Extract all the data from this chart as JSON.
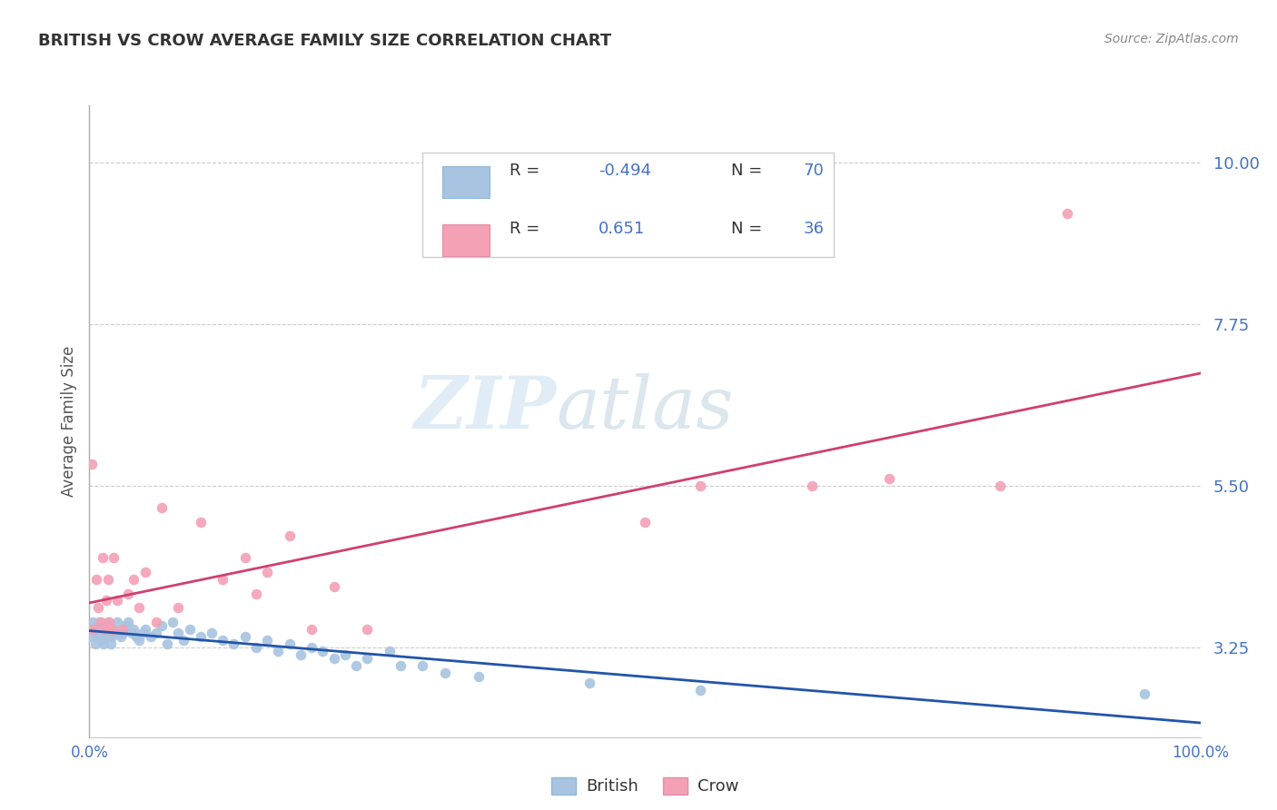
{
  "title": "BRITISH VS CROW AVERAGE FAMILY SIZE CORRELATION CHART",
  "source": "Source: ZipAtlas.com",
  "ylabel": "Average Family Size",
  "xlim": [
    0,
    1
  ],
  "ylim": [
    2.0,
    10.8
  ],
  "yticks": [
    3.25,
    5.5,
    7.75,
    10.0
  ],
  "yticklabels_right": [
    "3.25",
    "5.50",
    "7.75",
    "10.00"
  ],
  "xticks": [
    0.0,
    0.25,
    0.5,
    0.75,
    1.0
  ],
  "xticklabels": [
    "0.0%",
    "",
    "",
    "",
    "100.0%"
  ],
  "british_color": "#a8c4e0",
  "crow_color": "#f4a0b5",
  "british_line_color": "#2255aa",
  "crow_line_color": "#d04070",
  "title_color": "#404040",
  "axis_label_color": "#555555",
  "tick_color": "#4472c4",
  "watermark_zip": "ZIP",
  "watermark_atlas": "atlas",
  "legend_r_british": "-0.494",
  "legend_n_british": "70",
  "legend_r_crow": "0.651",
  "legend_n_crow": "36",
  "british_x": [
    0.001,
    0.002,
    0.003,
    0.004,
    0.005,
    0.006,
    0.006,
    0.007,
    0.007,
    0.008,
    0.009,
    0.01,
    0.01,
    0.011,
    0.012,
    0.013,
    0.013,
    0.014,
    0.015,
    0.016,
    0.017,
    0.018,
    0.019,
    0.02,
    0.021,
    0.022,
    0.025,
    0.027,
    0.028,
    0.03,
    0.032,
    0.035,
    0.038,
    0.04,
    0.042,
    0.045,
    0.048,
    0.05,
    0.055,
    0.06,
    0.065,
    0.07,
    0.075,
    0.08,
    0.085,
    0.09,
    0.1,
    0.11,
    0.12,
    0.13,
    0.14,
    0.15,
    0.16,
    0.17,
    0.18,
    0.19,
    0.2,
    0.21,
    0.22,
    0.23,
    0.24,
    0.25,
    0.27,
    0.28,
    0.3,
    0.32,
    0.35,
    0.45,
    0.55,
    0.95
  ],
  "british_y": [
    3.5,
    3.4,
    3.6,
    3.5,
    3.3,
    3.4,
    3.55,
    3.5,
    3.45,
    3.4,
    3.6,
    3.5,
    3.35,
    3.4,
    3.45,
    3.3,
    3.55,
    3.4,
    3.5,
    3.4,
    3.6,
    3.5,
    3.3,
    3.4,
    3.45,
    3.5,
    3.6,
    3.45,
    3.4,
    3.45,
    3.55,
    3.6,
    3.45,
    3.5,
    3.4,
    3.35,
    3.45,
    3.5,
    3.4,
    3.45,
    3.55,
    3.3,
    3.6,
    3.45,
    3.35,
    3.5,
    3.4,
    3.45,
    3.35,
    3.3,
    3.4,
    3.25,
    3.35,
    3.2,
    3.3,
    3.15,
    3.25,
    3.2,
    3.1,
    3.15,
    3.0,
    3.1,
    3.2,
    3.0,
    3.0,
    2.9,
    2.85,
    2.75,
    2.65,
    2.6
  ],
  "crow_x": [
    0.002,
    0.004,
    0.006,
    0.008,
    0.01,
    0.012,
    0.013,
    0.015,
    0.017,
    0.018,
    0.02,
    0.022,
    0.025,
    0.03,
    0.035,
    0.04,
    0.045,
    0.05,
    0.06,
    0.065,
    0.08,
    0.1,
    0.12,
    0.14,
    0.15,
    0.16,
    0.18,
    0.2,
    0.22,
    0.25,
    0.5,
    0.55,
    0.65,
    0.72,
    0.82,
    0.88
  ],
  "crow_y": [
    5.8,
    3.5,
    4.2,
    3.8,
    3.6,
    4.5,
    3.5,
    3.9,
    4.2,
    3.6,
    3.5,
    4.5,
    3.9,
    3.5,
    4.0,
    4.2,
    3.8,
    4.3,
    3.6,
    5.2,
    3.8,
    5.0,
    4.2,
    4.5,
    4.0,
    4.3,
    4.8,
    3.5,
    4.1,
    3.5,
    5.0,
    5.5,
    5.5,
    5.6,
    5.5,
    9.3
  ]
}
